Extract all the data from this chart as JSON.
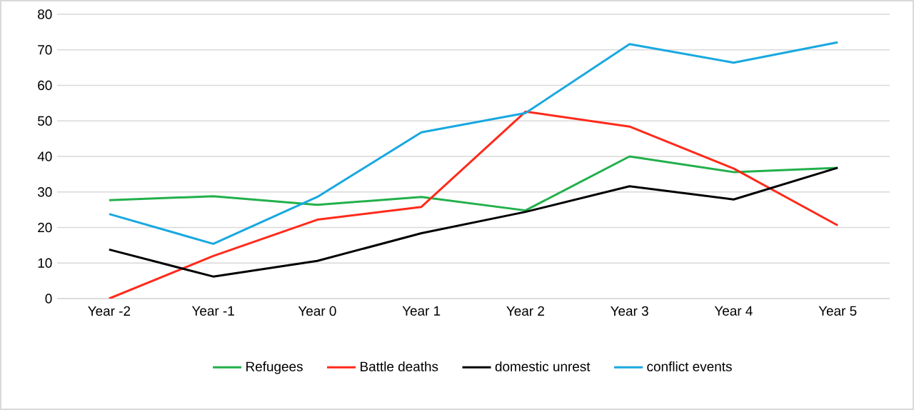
{
  "chart_data": {
    "type": "line",
    "categories": [
      "Year -2",
      "Year -1",
      "Year 0",
      "Year 1",
      "Year 2",
      "Year 3",
      "Year 4",
      "Year 5"
    ],
    "series": [
      {
        "name": "Refugees",
        "color": "#22b04b",
        "values": [
          27.7,
          28.8,
          26.4,
          28.6,
          24.8,
          40,
          35.6,
          36.8
        ]
      },
      {
        "name": "Battle deaths",
        "color": "#ff2a1a",
        "values": [
          0,
          12,
          22.2,
          25.8,
          52.6,
          48.4,
          36.6,
          20.6
        ]
      },
      {
        "name": "domestic unrest",
        "color": "#000000",
        "values": [
          13.8,
          6.2,
          10.6,
          18.4,
          24.4,
          31.6,
          27.9,
          36.8
        ]
      },
      {
        "name": "conflict events",
        "color": "#18a8e0",
        "values": [
          23.8,
          15.4,
          28.6,
          46.8,
          52.2,
          71.6,
          66.4,
          72.1
        ]
      }
    ],
    "ylim": [
      0,
      80
    ],
    "yticks": [
      0,
      10,
      20,
      30,
      40,
      50,
      60,
      70,
      80
    ],
    "grid": "y",
    "legend": "bottom",
    "marker": "none",
    "line_style": "solid"
  }
}
